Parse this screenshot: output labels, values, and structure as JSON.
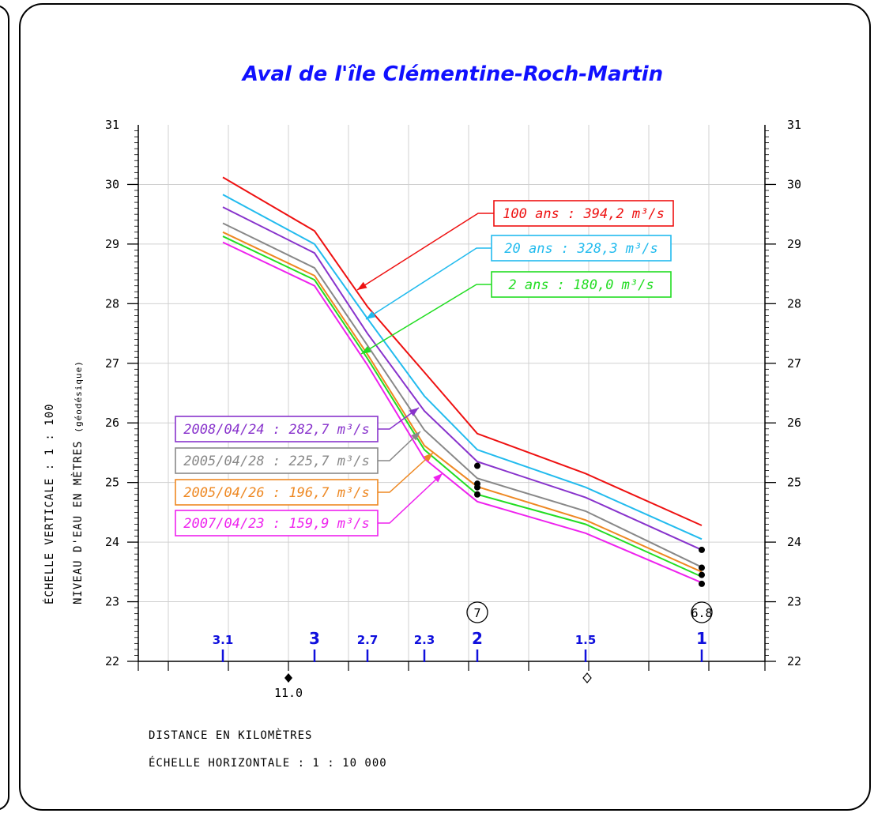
{
  "chart_data": {
    "type": "line",
    "title": "Aval de l'île Clémentine-Roch-Martin",
    "ylabel_1": "ÉCHELLE VERTICALE : 1 : 100",
    "ylabel_2": "NIVEAU D'EAU EN MÈTRES",
    "ylabel_2_suffix": "(géodésique)",
    "xlabel_1": "DISTANCE EN KILOMÈTRES",
    "xlabel_2": "ÉCHELLE HORIZONTALE : 1 : 10 000",
    "ylim": [
      22,
      31
    ],
    "yticks": [
      "22",
      "23",
      "24",
      "25",
      "26",
      "27",
      "28",
      "29",
      "30",
      "31"
    ],
    "grid": true,
    "x_stations": [
      3.1,
      3.0,
      2.7,
      2.3,
      2.0,
      1.5,
      1.0
    ],
    "km_markers": [
      {
        "label": "3.1",
        "x": 3.1
      },
      {
        "label": "3",
        "x": 3.0
      },
      {
        "label": "2.7",
        "x": 2.7
      },
      {
        "label": "2.3",
        "x": 2.3
      },
      {
        "label": "2",
        "x": 2.0
      },
      {
        "label": "1.5",
        "x": 1.5
      },
      {
        "label": "1",
        "x": 1.0
      }
    ],
    "bottom_marker": {
      "label": "11.0"
    },
    "circled_labels": [
      {
        "label": "7",
        "x": 2.0
      },
      {
        "label": "6.8",
        "x": 1.0
      }
    ],
    "series": [
      {
        "name": "100 ans : 394,2 m³/s",
        "color": "#ee1111",
        "values": [
          30.12,
          29.22,
          27.95,
          26.85,
          25.82,
          25.15,
          24.28
        ]
      },
      {
        "name": "20 ans : 328,3 m³/s",
        "color": "#22bbee",
        "values": [
          29.83,
          29.0,
          27.75,
          26.45,
          25.55,
          24.92,
          24.05
        ]
      },
      {
        "name": "2008/04/24 : 282,7 m³/s",
        "color": "#8833cc",
        "values": [
          29.62,
          28.85,
          27.5,
          26.2,
          25.35,
          24.75,
          23.87
        ]
      },
      {
        "name": "2005/04/28 : 225,7 m³/s",
        "color": "#888888",
        "values": [
          29.35,
          28.6,
          27.3,
          25.88,
          25.07,
          24.52,
          23.58
        ]
      },
      {
        "name": "2005/04/26 : 196,7 m³/s",
        "color": "#ee8822",
        "values": [
          29.2,
          28.47,
          27.15,
          25.62,
          24.93,
          24.37,
          23.5
        ]
      },
      {
        "name": "2 ans : 180,0 m³/s",
        "color": "#22dd22",
        "values": [
          29.13,
          28.4,
          27.08,
          25.55,
          24.8,
          24.3,
          23.42
        ]
      },
      {
        "name": "2007/04/23 : 159,9 m³/s",
        "color": "#ee22ee",
        "values": [
          29.03,
          28.3,
          26.97,
          25.4,
          24.68,
          24.15,
          23.32
        ]
      }
    ],
    "observed_points": [
      {
        "x": 2.0,
        "y": 25.28
      },
      {
        "x": 2.0,
        "y": 24.98
      },
      {
        "x": 2.0,
        "y": 24.92
      },
      {
        "x": 2.0,
        "y": 24.8
      },
      {
        "x": 1.0,
        "y": 23.87
      },
      {
        "x": 1.0,
        "y": 23.57
      },
      {
        "x": 1.0,
        "y": 23.45
      },
      {
        "x": 1.0,
        "y": 23.3
      }
    ]
  }
}
